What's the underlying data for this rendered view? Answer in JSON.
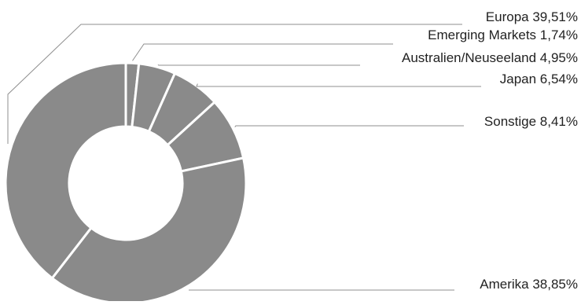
{
  "chart_data": {
    "type": "pie",
    "variant": "donut",
    "title": "",
    "slices": [
      {
        "name": "Emerging Markets",
        "value": 1.74,
        "label": "Emerging Markets 1,74%"
      },
      {
        "name": "Australien/Neuseeland",
        "value": 4.95,
        "label": "Australien/Neuseeland 4,95%"
      },
      {
        "name": "Japan",
        "value": 6.54,
        "label": "Japan 6,54%"
      },
      {
        "name": "Sonstige",
        "value": 8.41,
        "label": "Sonstige 8,41%"
      },
      {
        "name": "Amerika",
        "value": 38.85,
        "label": "Amerika 38,85%"
      },
      {
        "name": "Europa",
        "value": 39.51,
        "label": "Europa 39,51%"
      }
    ],
    "legend": "none",
    "colors": {
      "slice": "#8a8a8a",
      "separator": "#ffffff",
      "leader": "#8f8f8f",
      "label": "#222222"
    }
  }
}
